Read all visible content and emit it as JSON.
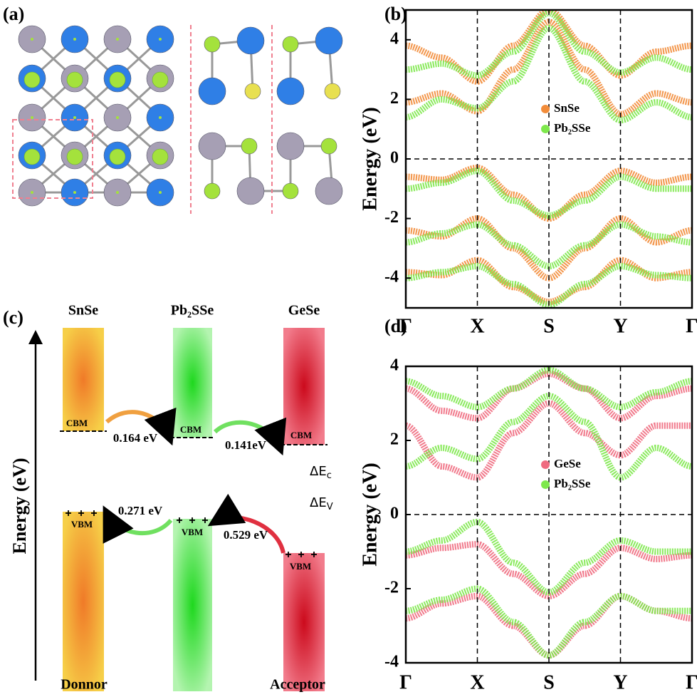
{
  "panel_a": {
    "label": "(a)"
  },
  "panel_c": {
    "label": "(c)",
    "axis_label": "Energy (eV)",
    "materials": [
      "SnSe",
      "Pb₂SSe",
      "GeSe"
    ],
    "cbm_labels": [
      "CBM",
      "CBM",
      "CBM"
    ],
    "vbm_labels": [
      "VBM",
      "VBM",
      "VBM"
    ],
    "cbm_offsets": [
      "0.164 eV",
      "0.141eV"
    ],
    "vbm_offsets": [
      "0.271 eV",
      "0.529 eV"
    ],
    "delta_c": {
      "main": "ΔE",
      "sub": "c"
    },
    "delta_v": {
      "main": "ΔE",
      "sub": "V"
    },
    "donor": "Donnor",
    "acceptor": "Acceptor"
  },
  "chart_data": [
    {
      "type": "line",
      "panel_label": "(b)",
      "ylabel": "Energy (eV)",
      "categories": [
        "Γ",
        null,
        "X",
        null,
        "S",
        null,
        "Y",
        null,
        "Γ"
      ],
      "ylim": [
        -5,
        5
      ],
      "yticks": [
        -4,
        -2,
        0,
        2,
        4
      ],
      "legend": "center",
      "series": [
        {
          "name": "SnSe",
          "color": "#f28c3a",
          "bands": [
            [
              1.9,
              2.2,
              1.6,
              3.0,
              4.6,
              3.0,
              1.5,
              2.2,
              1.9
            ],
            [
              3.8,
              3.4,
              2.6,
              3.8,
              5.0,
              3.8,
              2.8,
              3.6,
              3.8
            ],
            [
              -0.6,
              -0.7,
              -0.3,
              -1.2,
              -2.0,
              -1.2,
              -0.4,
              -0.8,
              -0.6
            ],
            [
              -2.4,
              -2.6,
              -2.0,
              -3.0,
              -4.0,
              -3.0,
              -2.0,
              -2.8,
              -2.4
            ],
            [
              -3.8,
              -3.9,
              -3.4,
              -4.3,
              -4.8,
              -4.3,
              -3.4,
              -4.0,
              -3.8
            ]
          ]
        },
        {
          "name": "Pb₂SSe",
          "color": "#7ee84c",
          "bands": [
            [
              1.4,
              2.0,
              1.7,
              2.6,
              4.4,
              2.6,
              1.3,
              1.9,
              1.4
            ],
            [
              3.0,
              3.2,
              2.8,
              3.6,
              4.9,
              3.6,
              2.9,
              3.4,
              3.0
            ],
            [
              -1.0,
              -0.8,
              -0.4,
              -1.4,
              -1.9,
              -1.4,
              -0.6,
              -1.0,
              -1.0
            ],
            [
              -2.8,
              -2.5,
              -2.2,
              -2.9,
              -3.6,
              -2.9,
              -2.2,
              -2.6,
              -2.8
            ],
            [
              -4.0,
              -3.8,
              -3.6,
              -4.2,
              -4.9,
              -4.2,
              -3.6,
              -3.9,
              -4.0
            ]
          ]
        }
      ]
    },
    {
      "type": "line",
      "panel_label": "(d)",
      "ylabel": "Energy (eV)",
      "categories": [
        "Γ",
        null,
        "X",
        null,
        "S",
        null,
        "Y",
        null,
        "Γ"
      ],
      "ylim": [
        -4,
        4
      ],
      "yticks": [
        -4,
        -2,
        0,
        2,
        4
      ],
      "legend": "center",
      "series": [
        {
          "name": "GeSe",
          "color": "#ef6b80",
          "bands": [
            [
              2.4,
              1.3,
              1.0,
              2.2,
              3.0,
              2.2,
              1.6,
              2.4,
              2.4
            ],
            [
              3.4,
              2.8,
              2.6,
              3.4,
              3.8,
              3.4,
              2.6,
              3.2,
              3.4
            ],
            [
              -1.1,
              -0.9,
              -0.8,
              -1.6,
              -2.2,
              -1.6,
              -0.9,
              -1.2,
              -1.1
            ],
            [
              -2.8,
              -2.4,
              -2.2,
              -3.0,
              -3.8,
              -3.0,
              -2.2,
              -2.6,
              -2.8
            ]
          ]
        },
        {
          "name": "Pb₂SSe",
          "color": "#7ee84c",
          "bands": [
            [
              1.3,
              1.8,
              1.5,
              2.5,
              3.2,
              2.5,
              1.0,
              1.8,
              1.3
            ],
            [
              3.6,
              3.2,
              2.9,
              3.4,
              3.9,
              3.4,
              2.9,
              3.3,
              3.6
            ],
            [
              -1.0,
              -0.7,
              -0.2,
              -1.3,
              -2.1,
              -1.3,
              -0.7,
              -1.0,
              -1.0
            ],
            [
              -2.6,
              -2.3,
              -2.0,
              -2.9,
              -3.8,
              -2.9,
              -2.2,
              -2.6,
              -2.6
            ]
          ]
        }
      ]
    }
  ]
}
